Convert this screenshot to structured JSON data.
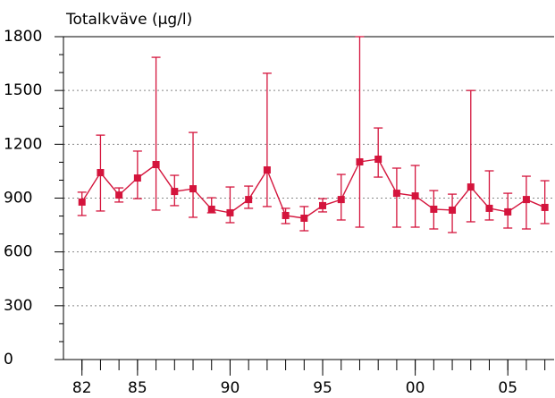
{
  "chart_data": {
    "type": "errorline",
    "title": "Totalkväve (µg/l)",
    "x": [
      1982,
      1983,
      1984,
      1985,
      1986,
      1987,
      1988,
      1989,
      1990,
      1991,
      1992,
      1993,
      1994,
      1995,
      1996,
      1997,
      1998,
      1999,
      2000,
      2001,
      2002,
      2003,
      2004,
      2005,
      2006,
      2007
    ],
    "series": [
      {
        "color": "#d4143c",
        "values": [
          878,
          1042,
          917,
          1012,
          1087,
          937,
          952,
          838,
          818,
          892,
          1057,
          803,
          788,
          858,
          892,
          1102,
          1117,
          927,
          912,
          838,
          833,
          962,
          843,
          823,
          892,
          848
        ],
        "upper": [
          933,
          1251,
          957,
          1162,
          1685,
          1027,
          1266,
          902,
          962,
          967,
          1596,
          843,
          853,
          897,
          1032,
          1800,
          1291,
          1067,
          1082,
          942,
          922,
          1500,
          1052,
          927,
          1022,
          997
        ],
        "lower": [
          803,
          828,
          878,
          897,
          833,
          858,
          793,
          818,
          763,
          843,
          853,
          758,
          718,
          823,
          778,
          738,
          1017,
          738,
          738,
          728,
          708,
          768,
          778,
          733,
          728,
          758
        ]
      }
    ],
    "xlim": [
      1981,
      2007.5
    ],
    "xticks": [
      {
        "value": 1982,
        "label": "82"
      },
      {
        "value": 1985,
        "label": "85"
      },
      {
        "value": 1990,
        "label": "90"
      },
      {
        "value": 1995,
        "label": "95"
      },
      {
        "value": 2000,
        "label": "00"
      },
      {
        "value": 2005,
        "label": "05"
      }
    ],
    "ylim": [
      0,
      1800
    ],
    "yticks": [
      0,
      300,
      600,
      900,
      1200,
      1500,
      1800
    ],
    "yminorticks": [
      100,
      200,
      400,
      500,
      700,
      800,
      1000,
      1100,
      1300,
      1400,
      1600,
      1700
    ],
    "grid": true
  }
}
